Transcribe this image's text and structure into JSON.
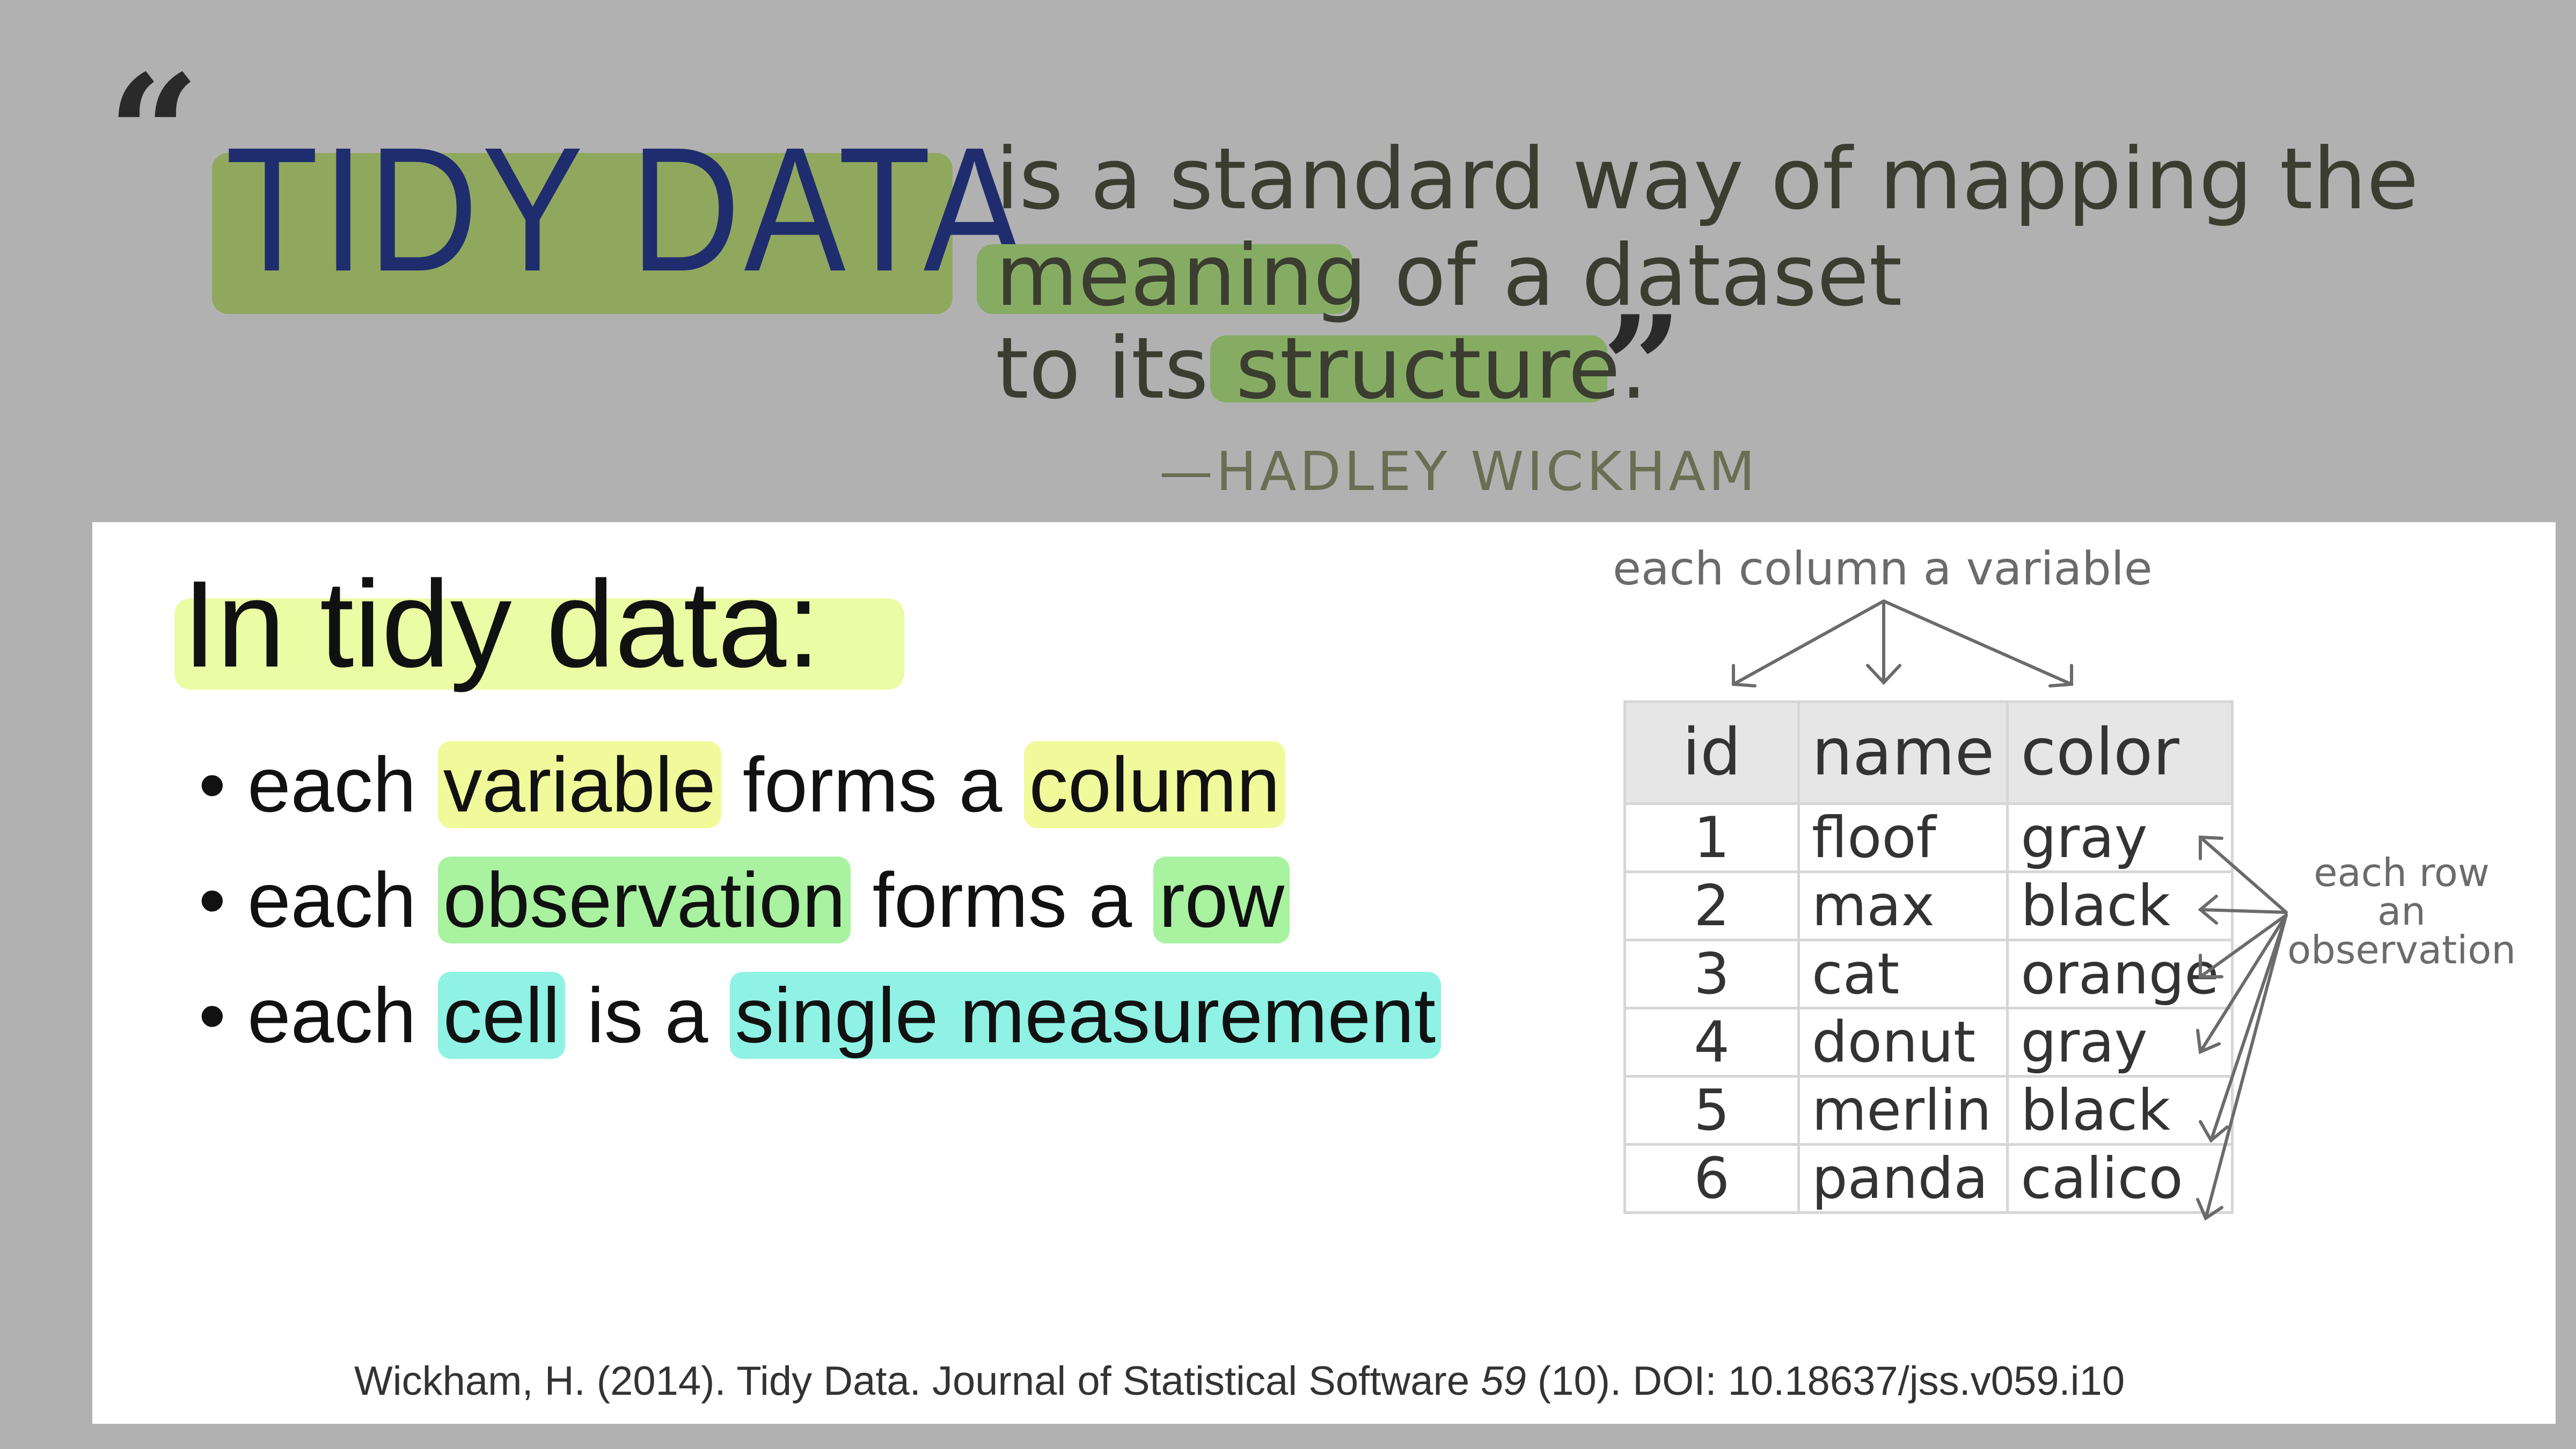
{
  "quote": {
    "title": "TIDY DATA",
    "line1": "is a standard way of mapping the",
    "line2_highlight": "meaning",
    "line2_rest": " of a dataset",
    "line3_start": "to its ",
    "line3_highlight": "structure",
    "line3_end": ".",
    "author": "—HADLEY WICKHAM"
  },
  "intro": {
    "title": "In tidy data:",
    "rules": [
      {
        "pre": "each ",
        "term1": "variable",
        "mid": " forms a ",
        "term2": "column"
      },
      {
        "pre": "each ",
        "term1": "observation",
        "mid": " forms a ",
        "term2": "row"
      },
      {
        "pre": "each ",
        "term1": "cell",
        "mid": " is a ",
        "term2": "single measurement"
      }
    ]
  },
  "table": {
    "headers": [
      "id",
      "name",
      "color"
    ],
    "rows": [
      [
        "1",
        "floof",
        "gray"
      ],
      [
        "2",
        "max",
        "black"
      ],
      [
        "3",
        "cat",
        "orange"
      ],
      [
        "4",
        "donut",
        "gray"
      ],
      [
        "5",
        "merlin",
        "black"
      ],
      [
        "6",
        "panda",
        "calico"
      ]
    ],
    "column_annotation": "each column a variable",
    "row_annotation_line1": "each row",
    "row_annotation_line2": "an",
    "row_annotation_line3": "observation"
  },
  "citation": {
    "pre": "Wickham, H. (2014). Tidy Data. Journal of Statistical Software ",
    "volume": "59",
    "post": " (10). DOI: 10.18637/jss.v059.i10"
  },
  "colors": {
    "background": "#b1b1b1",
    "title_highlight": "#8ea85a",
    "quote_highlight": "#86ac64",
    "variable_highlight": "#f0fa9a",
    "observation_highlight": "#a8f2a0",
    "cell_highlight": "#8ff2e4",
    "title_text": "#1f2d6e"
  }
}
